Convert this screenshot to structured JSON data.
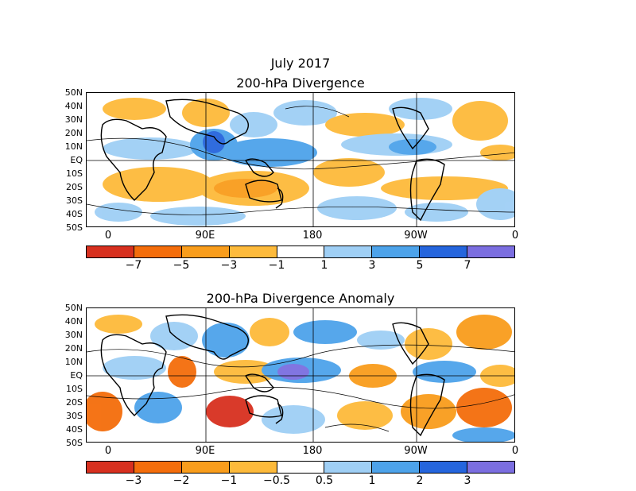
{
  "title": "July 2017",
  "panels": [
    {
      "title": "200-hPa Divergence",
      "colorbar_labels": [
        "−7",
        "−5",
        "−3",
        "−1",
        "1",
        "3",
        "5",
        "7"
      ]
    },
    {
      "title": "200-hPa Divergence Anomaly",
      "colorbar_labels": [
        "−3",
        "−2",
        "−1",
        "−0.5",
        "0.5",
        "1",
        "2",
        "3"
      ]
    }
  ],
  "lat_labels": [
    "50N",
    "40N",
    "30N",
    "20N",
    "10N",
    "EQ",
    "10S",
    "20S",
    "30S",
    "40S",
    "50S"
  ],
  "lon_labels": [
    "0",
    "90E",
    "180",
    "90W",
    "0"
  ],
  "colors": {
    "scale": [
      "#d7301f",
      "#f46d0b",
      "#f99d1c",
      "#fdba3b",
      "#ffffff",
      "#9fcff5",
      "#4da3ea",
      "#2565dd",
      "#7b6ee0"
    ],
    "neg_fill": "#fdba3b",
    "pos_fill": "#9fcff5"
  }
}
